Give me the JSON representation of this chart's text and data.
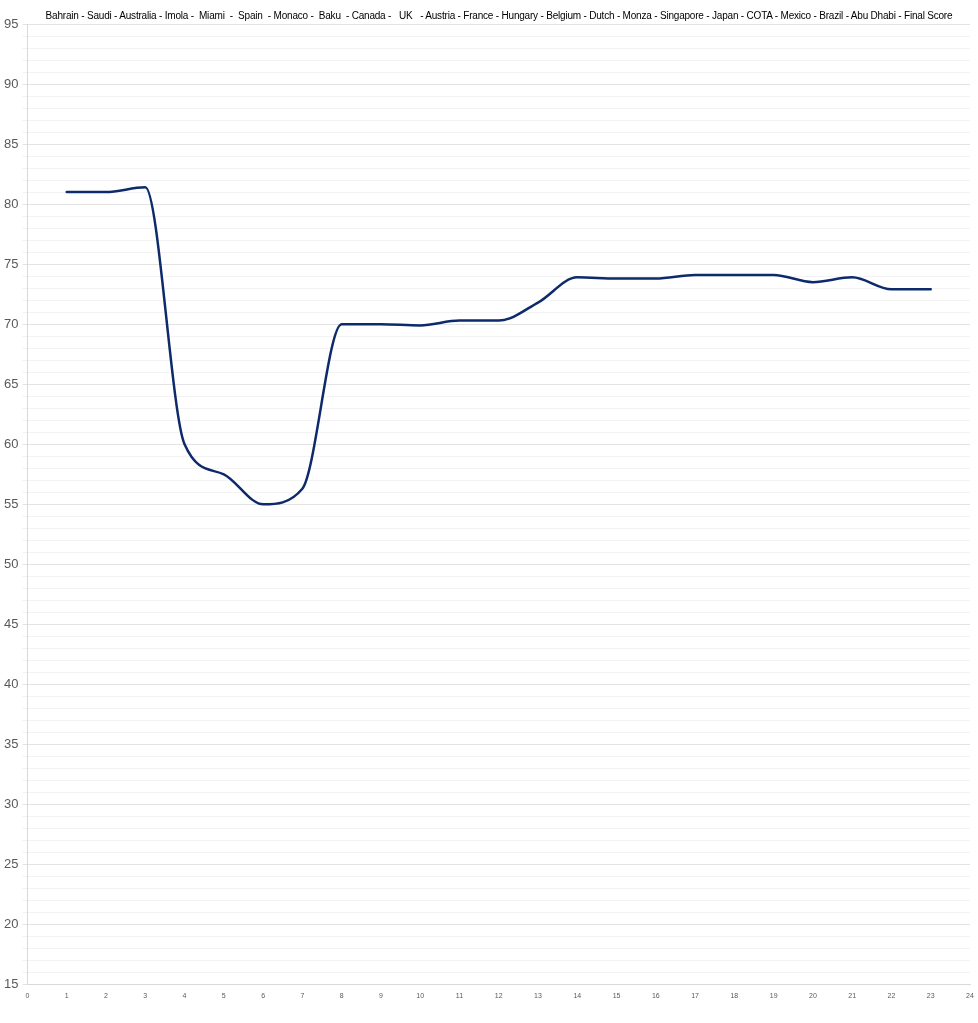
{
  "chart_data": {
    "type": "line",
    "title": "Bahrain - Saudi - Australia - Imola -  Miami  -  Spain  - Monaco -  Baku  - Canada -   UK   - Austria - France - Hungary - Belgium - Dutch - Monza - Singapore - Japan - COTA - Mexico - Brazil - Abu Dhabi - Final Score",
    "x": [
      1,
      2,
      3,
      4,
      5,
      6,
      7,
      8,
      9,
      10,
      11,
      12,
      13,
      14,
      15,
      16,
      17,
      18,
      19,
      20,
      21,
      22,
      23
    ],
    "series": [
      {
        "color": "#0d2a6b",
        "values": [
          81,
          81,
          81.4,
          60,
          57.5,
          55,
          56.3,
          70,
          70,
          69.9,
          70.3,
          70.3,
          71.8,
          73.9,
          73.8,
          73.8,
          74.1,
          74.1,
          74.1,
          73.5,
          73.9,
          72.9,
          72.9
        ]
      }
    ],
    "xlim": [
      0,
      24
    ],
    "xticks": [
      0,
      1,
      2,
      3,
      4,
      5,
      6,
      7,
      8,
      9,
      10,
      11,
      12,
      13,
      14,
      15,
      16,
      17,
      18,
      19,
      20,
      21,
      22,
      23,
      24
    ],
    "ylim": [
      15,
      95
    ],
    "yticks": [
      15,
      {
        "value": 16,
        "label": null
      },
      {
        "value": 17,
        "label": null
      },
      {
        "value": 18,
        "label": null
      },
      {
        "value": 19,
        "label": null
      },
      20,
      {
        "value": 21,
        "label": null
      },
      {
        "value": 22,
        "label": null
      },
      {
        "value": 23,
        "label": null
      },
      {
        "value": 24,
        "label": null
      },
      25,
      {
        "value": 26,
        "label": null
      },
      {
        "value": 27,
        "label": null
      },
      {
        "value": 28,
        "label": null
      },
      {
        "value": 29,
        "label": null
      },
      30,
      {
        "value": 31,
        "label": null
      },
      {
        "value": 32,
        "label": null
      },
      {
        "value": 33,
        "label": null
      },
      {
        "value": 34,
        "label": null
      },
      35,
      {
        "value": 36,
        "label": null
      },
      {
        "value": 37,
        "label": null
      },
      {
        "value": 38,
        "label": null
      },
      {
        "value": 39,
        "label": null
      },
      40,
      {
        "value": 41,
        "label": null
      },
      {
        "value": 42,
        "label": null
      },
      {
        "value": 43,
        "label": null
      },
      {
        "value": 44,
        "label": null
      },
      45,
      {
        "value": 46,
        "label": null
      },
      {
        "value": 47,
        "label": null
      },
      {
        "value": 48,
        "label": null
      },
      {
        "value": 49,
        "label": null
      },
      50,
      {
        "value": 51,
        "label": null
      },
      {
        "value": 52,
        "label": null
      },
      {
        "value": 53,
        "label": null
      },
      {
        "value": 54,
        "label": null
      },
      55,
      {
        "value": 56,
        "label": null
      },
      {
        "value": 57,
        "label": null
      },
      {
        "value": 58,
        "label": null
      },
      {
        "value": 59,
        "label": null
      },
      60,
      {
        "value": 61,
        "label": null
      },
      {
        "value": 62,
        "label": null
      },
      {
        "value": 63,
        "label": null
      },
      {
        "value": 64,
        "label": null
      },
      65,
      {
        "value": 66,
        "label": null
      },
      {
        "value": 67,
        "label": null
      },
      {
        "value": 68,
        "label": null
      },
      {
        "value": 69,
        "label": null
      },
      70,
      {
        "value": 71,
        "label": null
      },
      {
        "value": 72,
        "label": null
      },
      {
        "value": 73,
        "label": null
      },
      {
        "value": 74,
        "label": null
      },
      75,
      {
        "value": 76,
        "label": null
      },
      {
        "value": 77,
        "label": null
      },
      {
        "value": 78,
        "label": null
      },
      {
        "value": 79,
        "label": null
      },
      80,
      {
        "value": 81,
        "label": null
      },
      {
        "value": 82,
        "label": null
      },
      {
        "value": 83,
        "label": null
      },
      {
        "value": 84,
        "label": null
      },
      85,
      {
        "value": 86,
        "label": null
      },
      {
        "value": 87,
        "label": null
      },
      {
        "value": 88,
        "label": null
      },
      {
        "value": 89,
        "label": null
      },
      90,
      {
        "value": 91,
        "label": null
      },
      {
        "value": 92,
        "label": null
      },
      {
        "value": 93,
        "label": null
      },
      {
        "value": 94,
        "label": null
      },
      95
    ],
    "grid": "y",
    "legend": false,
    "marker": "none",
    "line_style": "solid"
  }
}
